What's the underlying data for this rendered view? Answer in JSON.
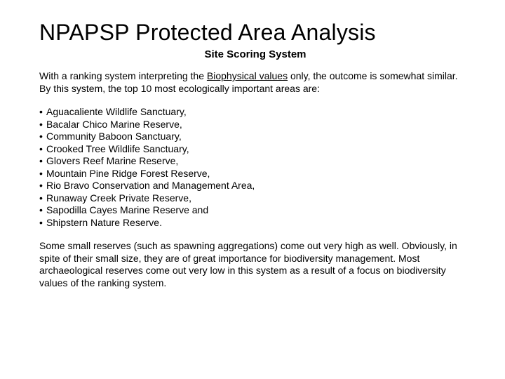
{
  "title": "NPAPSP Protected Area Analysis",
  "subtitle": "Site Scoring System",
  "intro_pre": "With a ranking system interpreting the ",
  "intro_underlined": "Biophysical values",
  "intro_post": " only, the outcome is somewhat similar. By this system, the top 10 most ecologically important areas are:",
  "items": [
    "Aguacaliente Wildlife Sanctuary,",
    "Bacalar Chico Marine Reserve,",
    "Community Baboon Sanctuary,",
    "Crooked Tree Wildlife Sanctuary,",
    "Glovers Reef Marine Reserve,",
    "Mountain Pine Ridge Forest Reserve,",
    "Rio Bravo Conservation and Management Area,",
    "Runaway Creek Private Reserve,",
    "Sapodilla Cayes Marine Reserve and",
    "Shipstern Nature Reserve."
  ],
  "closing": "Some small reserves (such as spawning aggregations) come out very high as well. Obviously, in spite of their small size, they are of great importance for biodiversity management. Most archaeological reserves come out very low in this system as a result of a focus on biodiversity values of the ranking system.",
  "colors": {
    "bg": "#ffffff",
    "text": "#000000"
  },
  "fonts": {
    "title_size": 32,
    "subtitle_size": 15,
    "body_size": 14
  }
}
